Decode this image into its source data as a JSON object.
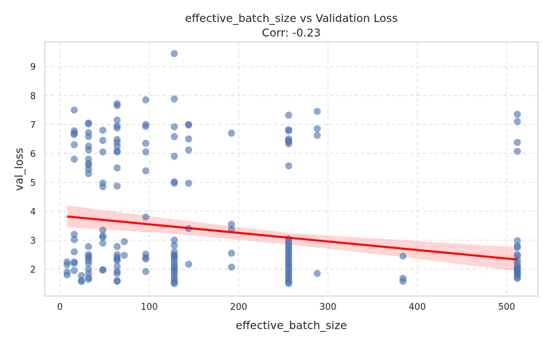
{
  "chart_data": {
    "type": "scatter",
    "title": "effective_batch_size vs Validation Loss",
    "subtitle": "Corr: -0.23",
    "xlabel": "effective_batch_size",
    "ylabel": "val_loss",
    "xlim": [
      -17,
      535
    ],
    "ylim": [
      1.07,
      9.85
    ],
    "xticks": [
      0,
      100,
      200,
      300,
      400,
      500
    ],
    "yticks": [
      2,
      3,
      4,
      5,
      6,
      7,
      8,
      9
    ],
    "grid": true,
    "point_color": "#4c72b0",
    "line_color": "#ff0000",
    "band_color": "#ffb3b3",
    "groups": [
      {
        "x": 8,
        "y": [
          2.25,
          2.15,
          1.9,
          1.8
        ]
      },
      {
        "x": 16,
        "y": [
          7.5,
          6.78,
          6.7,
          6.65,
          6.3,
          5.8,
          3.2,
          3.02,
          2.6,
          2.25,
          2.2,
          1.95
        ]
      },
      {
        "x": 24,
        "y": [
          1.78,
          1.6,
          1.58
        ]
      },
      {
        "x": 32,
        "y": [
          7.05,
          7.02,
          6.72,
          6.58,
          6.25,
          6.12,
          5.8,
          5.65,
          5.6,
          5.45,
          5.3,
          2.78,
          2.5,
          2.45,
          2.38,
          2.3,
          2.2,
          2.0,
          1.85,
          1.7,
          1.65
        ]
      },
      {
        "x": 48,
        "y": [
          6.8,
          6.45,
          6.05,
          4.98,
          4.85,
          3.35,
          3.15,
          3.1,
          2.9,
          1.98,
          1.97
        ]
      },
      {
        "x": 64,
        "y": [
          7.72,
          7.65,
          7.15,
          6.95,
          6.88,
          6.48,
          6.38,
          6.25,
          6.08,
          6.05,
          5.5,
          4.87,
          2.78,
          2.5,
          2.4,
          2.35,
          2.3,
          2.1,
          1.92,
          1.85,
          1.6,
          1.58
        ]
      },
      {
        "x": 72,
        "y": [
          2.95,
          2.48
        ]
      },
      {
        "x": 96,
        "y": [
          7.85,
          7.0,
          6.93,
          6.35,
          6.05,
          5.4,
          3.8,
          2.52,
          2.4,
          2.35,
          1.92
        ]
      },
      {
        "x": 128,
        "y": [
          9.45,
          7.88,
          6.92,
          6.58,
          5.9,
          5.02,
          4.97,
          3.0,
          2.82,
          2.6,
          2.5,
          2.45,
          2.4,
          2.3,
          2.2,
          2.1,
          2.05,
          1.95,
          1.9,
          1.8,
          1.7,
          1.62,
          1.55,
          1.5
        ]
      },
      {
        "x": 144,
        "y": [
          7.0,
          6.98,
          6.5,
          6.12,
          4.97,
          3.4,
          2.17
        ]
      },
      {
        "x": 192,
        "y": [
          6.7,
          3.55,
          3.38,
          2.55,
          2.07
        ]
      },
      {
        "x": 256,
        "y": [
          7.32,
          6.82,
          6.78,
          6.5,
          6.45,
          6.4,
          6.33,
          5.57,
          3.05,
          2.98,
          2.9,
          2.82,
          2.75,
          2.68,
          2.6,
          2.52,
          2.45,
          2.38,
          2.3,
          2.22,
          2.15,
          2.08,
          2.0,
          1.92,
          1.85,
          1.78,
          1.7,
          1.62,
          1.55,
          1.5
        ]
      },
      {
        "x": 288,
        "y": [
          7.45,
          6.85,
          6.62,
          1.85
        ]
      },
      {
        "x": 384,
        "y": [
          2.45,
          1.68,
          1.58
        ]
      },
      {
        "x": 512,
        "y": [
          7.35,
          7.1,
          6.38,
          6.07,
          2.98,
          2.8,
          2.75,
          2.5,
          2.45,
          2.3,
          2.2,
          2.1,
          2.05,
          2.0,
          1.95,
          1.9,
          1.85,
          1.8,
          1.72,
          1.68
        ]
      }
    ],
    "regression": {
      "x": [
        8,
        512
      ],
      "y": [
        3.82,
        2.33
      ]
    },
    "confidence_band": {
      "x": [
        8,
        128,
        256,
        384,
        512
      ],
      "lower": [
        3.45,
        3.22,
        2.85,
        2.42,
        1.93
      ],
      "upper": [
        4.2,
        3.72,
        3.25,
        3.0,
        2.75
      ]
    }
  }
}
